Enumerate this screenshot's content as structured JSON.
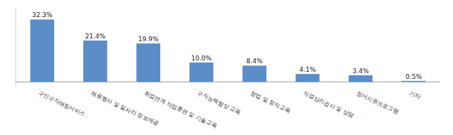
{
  "chart_data": {
    "type": "bar",
    "categories": [
      "구인구직매칭서비스",
      "채용행사 및 일자리 정보제공",
      "취업연계 직업훈련 및 기술교육",
      "구직능력향상 교육",
      "창업 및 창직교육",
      "직업심리검사 및 상담",
      "정서지원프로그램",
      "기타"
    ],
    "values": [
      32.3,
      21.4,
      19.9,
      10.0,
      8.4,
      4.1,
      3.4,
      0.5
    ],
    "value_labels": [
      "32.3%",
      "21.4%",
      "19.9%",
      "10.0%",
      "8.4%",
      "4.1%",
      "3.4%",
      "0.5%"
    ],
    "color": "#5B8DC8",
    "ylim": [
      -2.5,
      38
    ],
    "yticks": [],
    "grid": false,
    "data_labels": true,
    "tick_labels": "x"
  }
}
